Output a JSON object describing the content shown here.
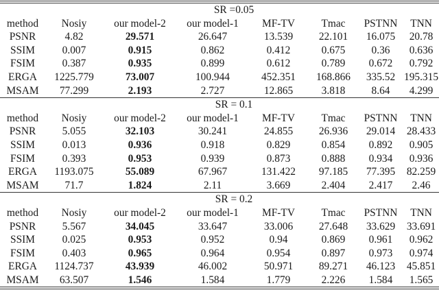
{
  "table": {
    "columns": [
      "method",
      "Nosiy",
      "our model-2",
      "our model-1",
      "MF-TV",
      "Tmac",
      "PSTNN",
      "TNN"
    ],
    "best_column": "our model-2",
    "sections": [
      {
        "header": "SR =0.05",
        "rows": [
          {
            "metric": "PSNR",
            "values": [
              "4.82",
              "29.571",
              "26.647",
              "13.539",
              "22.101",
              "16.075",
              "20.78"
            ]
          },
          {
            "metric": "SSIM",
            "values": [
              "0.007",
              "0.915",
              "0.862",
              "0.412",
              "0.675",
              "0.36",
              "0.636"
            ]
          },
          {
            "metric": "FSIM",
            "values": [
              "0.387",
              "0.935",
              "0.899",
              "0.612",
              "0.789",
              "0.672",
              "0.792"
            ]
          },
          {
            "metric": "ERGA",
            "values": [
              "1225.779",
              "73.007",
              "100.944",
              "452.351",
              "168.866",
              "335.52",
              "195.315"
            ]
          },
          {
            "metric": "MSAM",
            "values": [
              "77.299",
              "2.193",
              "2.727",
              "12.865",
              "3.818",
              "8.64",
              "4.299"
            ]
          }
        ]
      },
      {
        "header": "SR = 0.1",
        "rows": [
          {
            "metric": "PSNR",
            "values": [
              "5.055",
              "32.103",
              "30.241",
              "24.855",
              "26.936",
              "29.014",
              "28.433"
            ]
          },
          {
            "metric": "SSIM",
            "values": [
              "0.013",
              "0.936",
              "0.918",
              "0.829",
              "0.854",
              "0.892",
              "0.905"
            ]
          },
          {
            "metric": "FSIM",
            "values": [
              "0.393",
              "0.953",
              "0.939",
              "0.873",
              "0.888",
              "0.934",
              "0.936"
            ]
          },
          {
            "metric": "ERGA",
            "values": [
              "1193.075",
              "55.089",
              "67.967",
              "131.422",
              "97.185",
              "77.395",
              "82.259"
            ]
          },
          {
            "metric": "MSAM",
            "values": [
              "71.7",
              "1.824",
              "2.11",
              "3.669",
              "2.404",
              "2.417",
              "2.46"
            ]
          }
        ]
      },
      {
        "header": "SR = 0.2",
        "rows": [
          {
            "metric": "PSNR",
            "values": [
              "5.567",
              "34.045",
              "33.647",
              "33.006",
              "27.648",
              "33.629",
              "33.691"
            ]
          },
          {
            "metric": "SSIM",
            "values": [
              "0.025",
              "0.953",
              "0.952",
              "0.94",
              "0.869",
              "0.961",
              "0.962"
            ]
          },
          {
            "metric": "FSIM",
            "values": [
              "0.403",
              "0.965",
              "0.964",
              "0.954",
              "0.897",
              "0.973",
              "0.974"
            ]
          },
          {
            "metric": "ERGA",
            "values": [
              "1124.737",
              "43.939",
              "46.002",
              "50.971",
              "89.271",
              "46.123",
              "45.851"
            ]
          },
          {
            "metric": "MSAM",
            "values": [
              "63.507",
              "1.546",
              "1.584",
              "1.779",
              "2.226",
              "1.584",
              "1.565"
            ]
          }
        ]
      }
    ]
  }
}
